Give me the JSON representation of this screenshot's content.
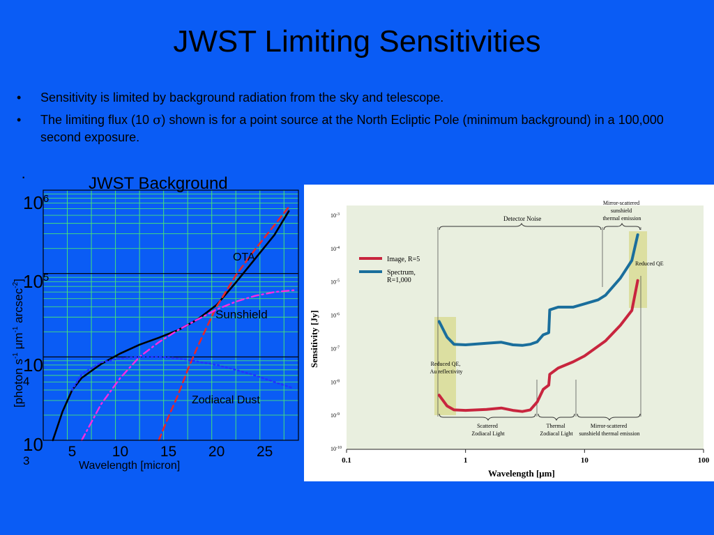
{
  "slide": {
    "title": "JWST Limiting Sensitivities",
    "bullets": [
      {
        "text": "Sensitivity is limited by background radiation from the sky and telescope."
      },
      {
        "pre": "The limiting flux (10 ",
        "symbol": "σ",
        "post": ") shown is for a point source at the North Ecliptic Pole (minimum background) in a 100,000 second exposure."
      }
    ],
    "stray_bullet": "·"
  },
  "chart_data": [
    {
      "type": "line",
      "title": "JWST Background",
      "xlabel": "Wavelength [micron]",
      "ylabel": "[photon s-1 μm-1 arcsec-2]",
      "ylabel_parts": {
        "a": "[photon s",
        "b": "-1",
        "c": " μm",
        "d": "-1",
        "e": " arcsec",
        "f": "-2",
        "g": "]"
      },
      "xlim": [
        2,
        28.5
      ],
      "ylim": [
        1000,
        1000000
      ],
      "y_scale": "log",
      "grid": true,
      "x_ticks": [
        "5",
        "10",
        "15",
        "20",
        "25"
      ],
      "y_ticks": [
        {
          "base": "10",
          "exp": "6"
        },
        {
          "base": "10",
          "exp": "5"
        },
        {
          "base": "10",
          "exp": "4"
        },
        {
          "base": "10",
          "exp": "3"
        }
      ],
      "annotations": [
        "OTA",
        "Sunshield",
        "Zodiacal Dust"
      ],
      "colors": {
        "plot_bg": "#0a5cf5",
        "grid": "#45e27a",
        "total": "#000000",
        "ota": "#e8262a",
        "sunshield": "#ff2ae0",
        "zodiacal": "#2233ff"
      },
      "series": [
        {
          "style": "solid",
          "x": [
            3,
            4,
            5,
            6,
            8,
            10,
            12,
            14,
            16,
            18,
            20,
            22,
            24,
            26,
            27.5
          ],
          "y": [
            1000,
            2200,
            4000,
            5600,
            8200,
            11000,
            14000,
            17000,
            21000,
            28000,
            42000,
            78000,
            150000,
            290000,
            560000
          ]
        },
        {
          "style": "dashed",
          "x": [
            14,
            15,
            16,
            17,
            18,
            19,
            20,
            22,
            24,
            26,
            27.5
          ],
          "y": [
            1000,
            1900,
            3500,
            7000,
            13000,
            23000,
            40000,
            95000,
            195000,
            380000,
            630000
          ]
        },
        {
          "style": "dash-dot",
          "x": [
            6,
            8,
            10,
            12,
            14,
            16,
            18,
            20,
            22,
            24,
            26,
            28
          ],
          "y": [
            1000,
            2700,
            5600,
            10000,
            15000,
            21000,
            28000,
            37000,
            46000,
            54000,
            60000,
            63000
          ]
        },
        {
          "style": "dotted",
          "x": [
            5,
            6,
            8,
            10,
            12,
            14,
            16,
            18,
            20,
            22,
            24,
            26,
            28
          ],
          "y": [
            4000,
            6200,
            8600,
            9600,
            10000,
            10000,
            9600,
            8800,
            8000,
            7000,
            6000,
            5000,
            4200
          ]
        }
      ]
    },
    {
      "type": "line",
      "title": "",
      "xlabel": "Wavelength [μm]",
      "ylabel": "Sensitivity [Jy]",
      "x_scale": "log",
      "y_scale": "log",
      "xlim": [
        0.1,
        100
      ],
      "ylim": [
        1e-10,
        0.001
      ],
      "grid": false,
      "legend_position": "top-left",
      "x_ticks": [
        "0.1",
        "1",
        "10",
        "100"
      ],
      "y_ticks": [
        {
          "base": "10",
          "exp": "-3"
        },
        {
          "base": "10",
          "exp": "-4"
        },
        {
          "base": "10",
          "exp": "-5"
        },
        {
          "base": "10",
          "exp": "-6"
        },
        {
          "base": "10",
          "exp": "-7"
        },
        {
          "base": "10",
          "exp": "-8"
        },
        {
          "base": "10",
          "exp": "-9"
        },
        {
          "base": "10",
          "exp": "-10"
        }
      ],
      "annotations": {
        "detector_noise": "Detector Noise",
        "mirror_top": [
          "Mirror-scattered",
          "sunshield",
          "thermal emission"
        ],
        "reduced_qe_right": "Reduced QE",
        "reduced_qe_left": [
          "Reduced QE,",
          "Au reflectivity"
        ],
        "scattered": [
          "Scattered",
          "Zodiacal Light"
        ],
        "thermal": [
          "Thermal",
          "Zodiacal Light"
        ],
        "mirror_bottom": [
          "Mirror-scattered",
          "sunshield thermal emission"
        ]
      },
      "colors": {
        "plot_bg": "#e9efdf",
        "highlight": "#dcdfa1",
        "image": "#c8253e",
        "spectrum": "#1a6e9c"
      },
      "series": [
        {
          "name": "Image, R=5",
          "x": [
            0.6,
            0.7,
            0.8,
            1,
            1.5,
            2,
            2.5,
            3,
            3.5,
            4,
            4.5,
            5,
            5.1,
            6,
            8,
            10,
            15,
            20,
            25,
            28
          ],
          "y": [
            4e-09,
            1.9e-09,
            1.45e-09,
            1.4e-09,
            1.5e-09,
            1.65e-09,
            1.4e-09,
            1.3e-09,
            1.45e-09,
            2.5e-09,
            6e-09,
            8e-09,
            1.7e-08,
            2.6e-08,
            4e-08,
            6e-08,
            1.7e-07,
            5e-07,
            1.4e-06,
            1.1e-05
          ]
        },
        {
          "name": "Spectrum, R=1,000",
          "x": [
            0.6,
            0.7,
            0.8,
            1,
            1.5,
            2,
            2.5,
            3,
            3.5,
            4,
            4.5,
            5,
            5.1,
            6,
            8,
            10,
            13,
            15,
            20,
            25,
            28
          ],
          "y": [
            6.5e-07,
            2.2e-07,
            1.35e-07,
            1.3e-07,
            1.45e-07,
            1.55e-07,
            1.3e-07,
            1.25e-07,
            1.35e-07,
            1.6e-07,
            2.6e-07,
            3e-07,
            1.45e-06,
            1.75e-06,
            1.75e-06,
            2.2e-06,
            2.9e-06,
            4e-06,
            1.3e-05,
            4.4e-05,
            0.00026
          ]
        }
      ]
    }
  ]
}
